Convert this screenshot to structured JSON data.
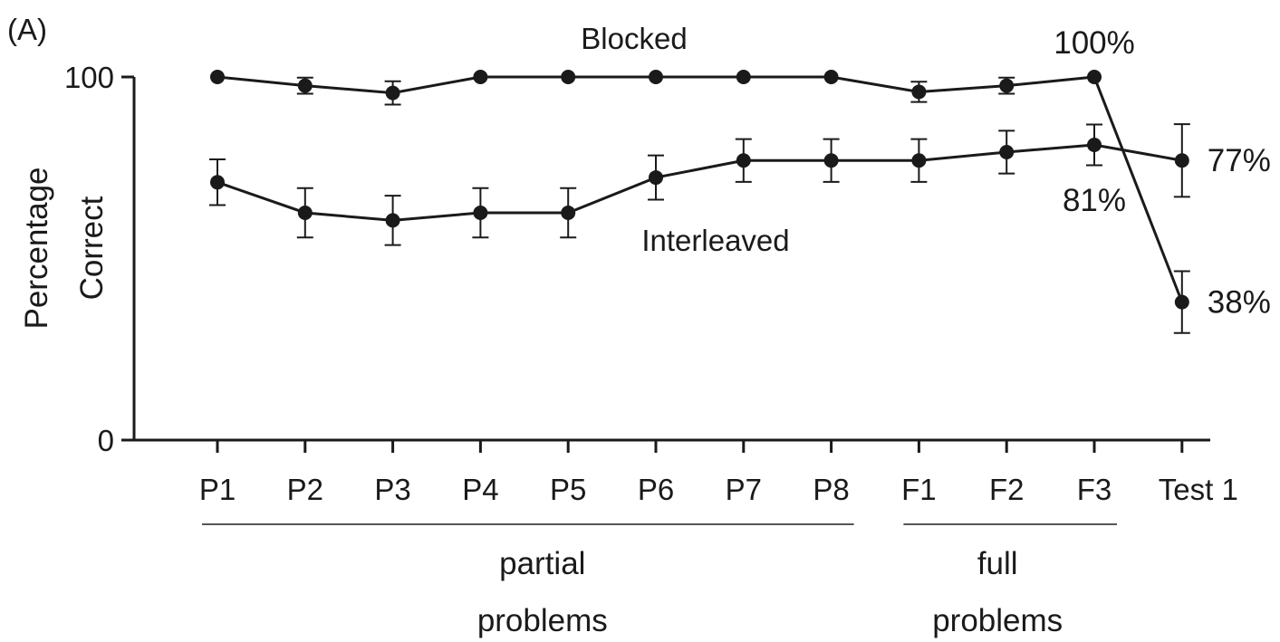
{
  "panel_label": "(A)",
  "chart_data": {
    "type": "line",
    "categories": [
      "P1",
      "P2",
      "P3",
      "P4",
      "P5",
      "P6",
      "P7",
      "P8",
      "F1",
      "F2",
      "F3",
      "Test 1"
    ],
    "ylabel": [
      "Percentage",
      "Correct"
    ],
    "ylim": [
      0,
      100
    ],
    "yticks": [
      0,
      100
    ],
    "groups": [
      {
        "label": [
          "partial",
          "problems"
        ],
        "from": "P1",
        "to": "P8"
      },
      {
        "label": [
          "full",
          "problems"
        ],
        "from": "F1",
        "to": "F3"
      }
    ],
    "series": [
      {
        "name": "Blocked",
        "values": [
          100,
          97.6,
          95.6,
          100,
          100,
          100,
          100,
          100,
          95.9,
          97.6,
          100,
          38
        ],
        "errors": [
          0,
          2.2,
          3.2,
          0,
          0,
          0,
          0,
          0,
          2.8,
          2.2,
          0,
          8.5
        ]
      },
      {
        "name": "Interleaved",
        "values": [
          71,
          62.6,
          60.5,
          62.6,
          62.6,
          72.3,
          77,
          77,
          77,
          79.3,
          81.3,
          77
        ],
        "errors": [
          6.3,
          6.8,
          6.8,
          6.8,
          6.8,
          6.1,
          5.9,
          5.9,
          5.9,
          5.9,
          5.6,
          10
        ]
      }
    ],
    "annotations": [
      {
        "text": "100%",
        "series": "Blocked",
        "at": "F3"
      },
      {
        "text": "38%",
        "series": "Blocked",
        "at": "Test 1"
      },
      {
        "text": "81%",
        "series": "Interleaved",
        "at": "F3"
      },
      {
        "text": "77%",
        "series": "Interleaved",
        "at": "Test 1"
      }
    ]
  }
}
